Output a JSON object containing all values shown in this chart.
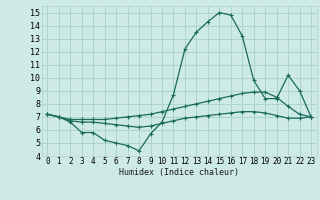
{
  "xlabel": "Humidex (Indice chaleur)",
  "xlim": [
    -0.5,
    23.5
  ],
  "ylim": [
    4,
    15.5
  ],
  "yticks": [
    4,
    5,
    6,
    7,
    8,
    9,
    10,
    11,
    12,
    13,
    14,
    15
  ],
  "xticks": [
    0,
    1,
    2,
    3,
    4,
    5,
    6,
    7,
    8,
    9,
    10,
    11,
    12,
    13,
    14,
    15,
    16,
    17,
    18,
    19,
    20,
    21,
    22,
    23
  ],
  "bg_color": "#ceeae7",
  "grid_color": "#aed4d0",
  "line_color": "#1a6b5a",
  "line1_y": [
    7.2,
    7.0,
    6.6,
    5.8,
    5.8,
    5.2,
    5.0,
    4.8,
    4.4,
    5.7,
    6.6,
    8.7,
    12.2,
    13.5,
    14.3,
    15.0,
    14.8,
    13.2,
    9.8,
    8.4,
    8.4,
    10.2,
    9.0,
    7.0
  ],
  "line2_y": [
    7.2,
    7.0,
    6.8,
    6.8,
    6.8,
    6.8,
    6.9,
    7.0,
    7.1,
    7.2,
    7.4,
    7.6,
    7.8,
    8.0,
    8.2,
    8.4,
    8.6,
    8.8,
    8.9,
    8.9,
    8.5,
    7.8,
    7.2,
    7.0
  ],
  "line3_y": [
    7.2,
    7.0,
    6.7,
    6.6,
    6.6,
    6.5,
    6.4,
    6.3,
    6.2,
    6.3,
    6.5,
    6.7,
    6.9,
    7.0,
    7.1,
    7.2,
    7.3,
    7.4,
    7.4,
    7.3,
    7.1,
    6.9,
    6.9,
    7.0
  ],
  "xlabel_fontsize": 6,
  "tick_fontsize": 5.5,
  "ytick_fontsize": 6
}
